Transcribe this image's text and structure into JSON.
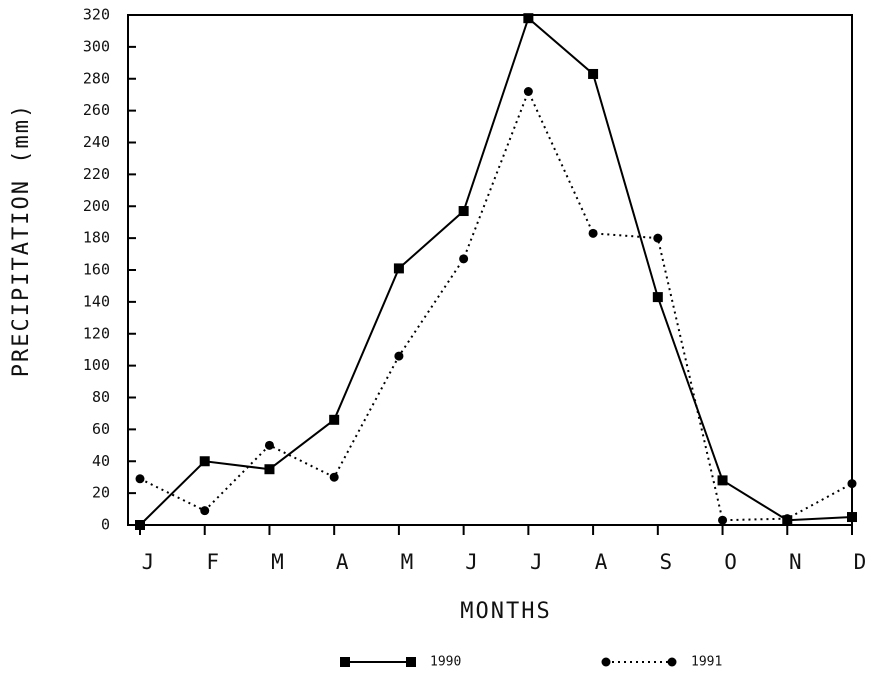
{
  "chart_data": {
    "type": "line",
    "x_label": "MONTHS",
    "y_label": "PRECIPITATION (mm)",
    "categories": [
      "J",
      "F",
      "M",
      "A",
      "M",
      "J",
      "J",
      "A",
      "S",
      "O",
      "N",
      "D"
    ],
    "series": [
      {
        "name": "1990",
        "color": "#000000",
        "dash": "solid",
        "marker": "square",
        "values": [
          0,
          40,
          35,
          66,
          161,
          197,
          318,
          283,
          143,
          28,
          3,
          5
        ]
      },
      {
        "name": "1991",
        "color": "#000000",
        "dash": "dotted",
        "marker": "circle",
        "values": [
          29,
          9,
          50,
          30,
          106,
          167,
          272,
          183,
          180,
          3,
          4,
          26
        ]
      }
    ],
    "ylim": [
      0,
      320
    ],
    "yticks": [
      0,
      20,
      40,
      60,
      80,
      100,
      120,
      140,
      160,
      180,
      200,
      220,
      240,
      260,
      280,
      300,
      320
    ],
    "grid": false
  }
}
